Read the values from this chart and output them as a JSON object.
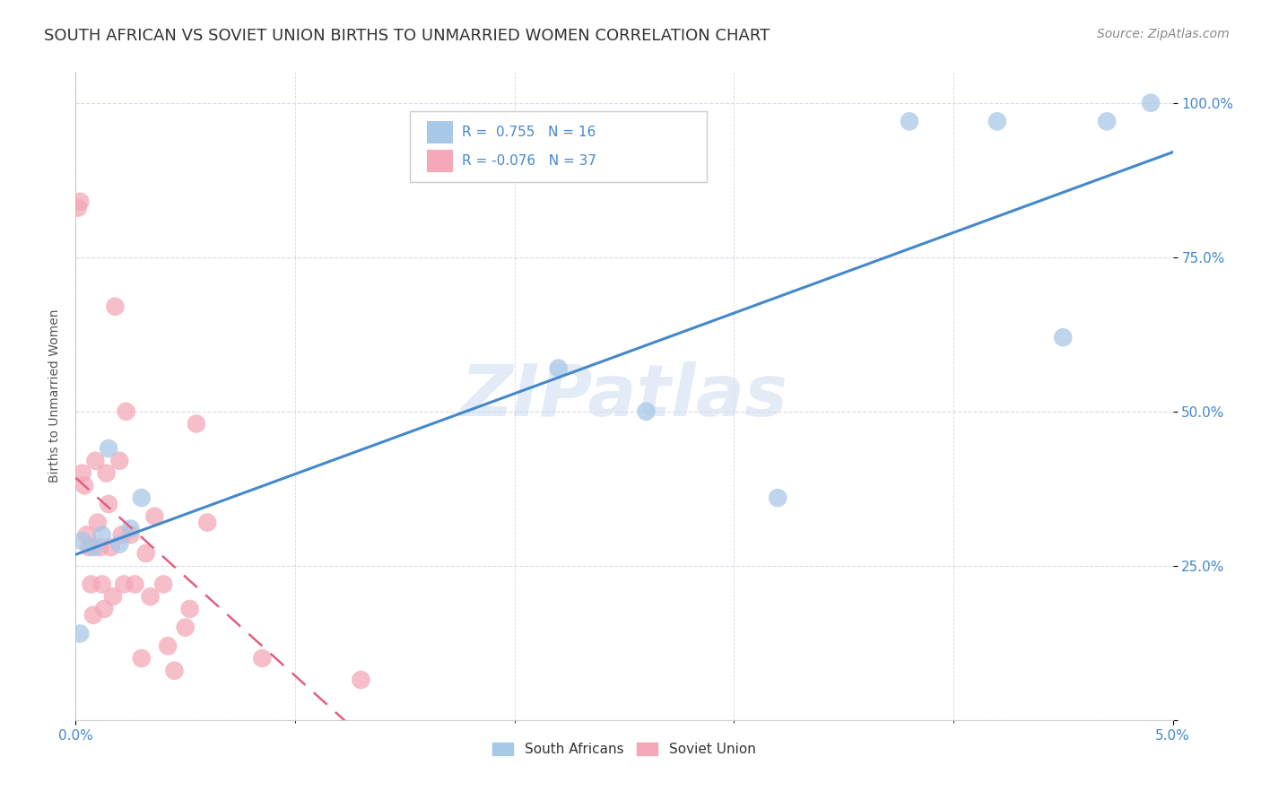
{
  "title": "SOUTH AFRICAN VS SOVIET UNION BIRTHS TO UNMARRIED WOMEN CORRELATION CHART",
  "source": "Source: ZipAtlas.com",
  "ylabel": "Births to Unmarried Women",
  "watermark": "ZIPatlas",
  "sa_r": 0.755,
  "sa_n": 16,
  "su_r": -0.076,
  "su_n": 37,
  "sa_color": "#a8c8e8",
  "su_color": "#f4a8b8",
  "sa_line_color": "#4488cc",
  "su_line_color": "#e06080",
  "sa_x": [
    0.0002,
    0.0003,
    0.0008,
    0.0012,
    0.0015,
    0.002,
    0.0025,
    0.003,
    0.022,
    0.026,
    0.032,
    0.038,
    0.042,
    0.045,
    0.047,
    0.049
  ],
  "sa_y": [
    0.14,
    0.29,
    0.28,
    0.3,
    0.44,
    0.285,
    0.31,
    0.36,
    0.57,
    0.5,
    0.36,
    0.97,
    0.97,
    0.62,
    0.97,
    1.0
  ],
  "su_x": [
    0.0001,
    0.0002,
    0.0003,
    0.0004,
    0.0005,
    0.0006,
    0.0007,
    0.0008,
    0.0009,
    0.001,
    0.0011,
    0.0012,
    0.0013,
    0.0014,
    0.0015,
    0.0016,
    0.0017,
    0.0018,
    0.002,
    0.0021,
    0.0022,
    0.0023,
    0.0025,
    0.0027,
    0.003,
    0.0032,
    0.0034,
    0.0036,
    0.004,
    0.0042,
    0.0045,
    0.005,
    0.0052,
    0.0055,
    0.006,
    0.0085,
    0.013
  ],
  "su_y": [
    0.83,
    0.84,
    0.4,
    0.38,
    0.3,
    0.28,
    0.22,
    0.17,
    0.42,
    0.32,
    0.28,
    0.22,
    0.18,
    0.4,
    0.35,
    0.28,
    0.2,
    0.67,
    0.42,
    0.3,
    0.22,
    0.5,
    0.3,
    0.22,
    0.1,
    0.27,
    0.2,
    0.33,
    0.22,
    0.12,
    0.08,
    0.15,
    0.18,
    0.48,
    0.32,
    0.1,
    0.065
  ],
  "xlim": [
    0.0,
    0.05
  ],
  "ylim": [
    0.0,
    1.05
  ],
  "yticks": [
    0.0,
    0.25,
    0.5,
    0.75,
    1.0
  ],
  "ytick_labels": [
    "",
    "25.0%",
    "50.0%",
    "75.0%",
    "100.0%"
  ],
  "background_color": "#ffffff",
  "grid_color": "#d8d8e8",
  "title_fontsize": 13,
  "axis_label_fontsize": 10,
  "tick_fontsize": 11,
  "legend_fontsize": 11,
  "source_fontsize": 10
}
